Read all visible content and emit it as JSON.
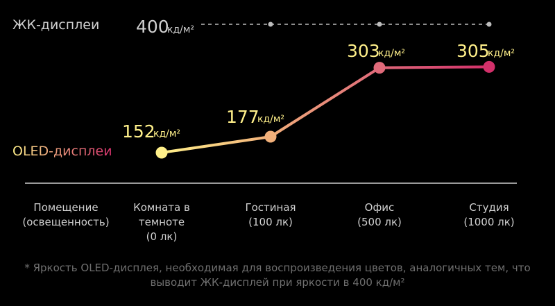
{
  "chart_data": {
    "type": "line",
    "unit": "кд/м²",
    "categories_header": [
      "Помещение",
      "(освещенность)"
    ],
    "categories": [
      {
        "lines": [
          "Комната в",
          "темноте",
          "(0 лк)"
        ]
      },
      {
        "lines": [
          "Гостиная",
          "(100 лк)"
        ]
      },
      {
        "lines": [
          "Офис",
          "(500 лк)"
        ]
      },
      {
        "lines": [
          "Студия",
          "(1000 лк)"
        ]
      }
    ],
    "series": [
      {
        "name": "ЖК-дисплеи",
        "values": [
          400,
          400,
          400,
          400
        ],
        "color": "#bdbdbd",
        "style": "dashed"
      },
      {
        "name": "OLED-дисплеи",
        "values": [
          152,
          177,
          303,
          305
        ],
        "colors": [
          "#fff08a",
          "#f2b07a",
          "#e06a7a",
          "#d2306a"
        ]
      }
    ],
    "reference_label": "400",
    "data_labels": [
      "152",
      "177",
      "303",
      "305"
    ],
    "grid": false
  },
  "colors": {
    "label_yellow": "#fff08a",
    "lcd_line": "#bdbdbd",
    "baseline": "#9a9a9a",
    "text": "#d0d0d0",
    "note": "#6f6f6f"
  },
  "footnote": {
    "line1": "* Яркость OLED-дисплея, необходимая для воспроизведения цветов, аналогичных тем, что",
    "line2": "выводит ЖК-дисплей при яркости в 400 кд/м²"
  }
}
